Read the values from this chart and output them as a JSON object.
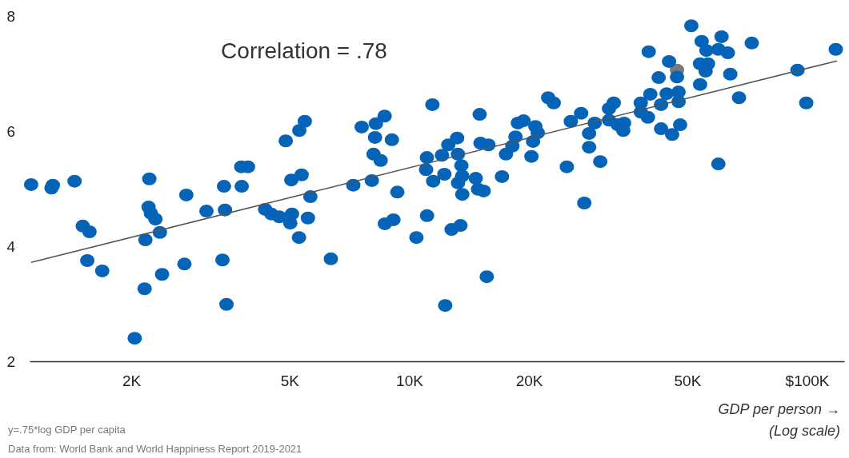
{
  "chart_data": {
    "type": "scatter",
    "xlabel": "GDP per person →\n(Log scale)",
    "log": "x",
    "marker": "circle",
    "grid": false,
    "tick_labels": "xy",
    "xlim": [
      1110,
      124000
    ],
    "ylim": [
      2,
      8
    ],
    "xticks": [
      {
        "value": 2000,
        "label": "2K"
      },
      {
        "value": 5000,
        "label": "5K"
      },
      {
        "value": 10000,
        "label": "10K"
      },
      {
        "value": 20000,
        "label": "20K"
      },
      {
        "value": 50000,
        "label": "50K"
      },
      {
        "value": 100000,
        "label": "$100K"
      }
    ],
    "yticks": [
      2,
      4,
      6,
      8
    ],
    "annotations": [
      "Correlation = .78",
      "y=.75*log GDP per capita",
      "Data from: World Bank and World Happiness Report 2019-2021"
    ],
    "series": [
      {
        "color": "#7a7a7a",
        "x": [
          47100
        ],
        "values": [
          7.06
        ]
      },
      {
        "color": "#0563b8",
        "x": [
          1120,
          1260,
          1270,
          1440,
          1510,
          1570,
          1550,
          1690,
          2220,
          2210,
          2240,
          2300,
          2360,
          2170,
          2160,
          2390,
          2040,
          2750,
          2720,
          3090,
          3420,
          3440,
          3390,
          3470,
          3780,
          3930,
          3790,
          4340,
          4500,
          4710,
          5070,
          5020,
          5280,
          5560,
          5640,
          5050,
          5360,
          4890,
          5290,
          5460,
          6350,
          7230,
          8050,
          7590,
          8240,
          8670,
          8200,
          9040,
          8130,
          8470,
          9330,
          8680,
          9120,
          10420,
          11070,
          11020,
          11430,
          11080,
          11480,
          12250,
          12080,
          12530,
          13190,
          13250,
          13520,
          13580,
          13260,
          13590,
          14690,
          14890,
          15380,
          15030,
          15100,
          15810,
          12770,
          13450,
          15660,
          12310,
          17100,
          17500,
          18160,
          18490,
          18750,
          19370,
          20750,
          21040,
          20470,
          20280,
          22340,
          23070,
          25470,
          27040,
          29240,
          28310,
          28320,
          30200,
          24890,
          27540,
          31770,
          32660,
          31780,
          33420,
          34670,
          34510,
          38190,
          38200,
          39810,
          40360,
          42360,
          42950,
          44360,
          47530,
          47540,
          47110,
          44980,
          39990,
          42960,
          45810,
          47970,
          51170,
          54330,
          55850,
          53830,
          56360,
          55590,
          53840,
          59840,
          60950,
          63240,
          64120,
          67450,
          59850,
          72610,
          94620,
          99540,
          118100
        ],
        "values": [
          5.07,
          5.01,
          5.06,
          5.13,
          4.35,
          4.25,
          3.75,
          3.57,
          5.17,
          4.68,
          4.57,
          4.47,
          4.24,
          4.11,
          3.26,
          3.51,
          2.4,
          4.89,
          3.69,
          4.61,
          5.04,
          4.63,
          3.76,
          2.99,
          5.38,
          5.38,
          5.04,
          4.64,
          4.56,
          4.51,
          4.56,
          4.4,
          4.15,
          4.49,
          4.86,
          5.15,
          5.24,
          5.83,
          6.01,
          6.17,
          3.78,
          5.06,
          5.14,
          6.07,
          6.13,
          6.26,
          5.89,
          5.85,
          5.6,
          5.49,
          4.94,
          4.39,
          4.46,
          4.15,
          5.54,
          5.33,
          6.46,
          4.53,
          5.13,
          5.25,
          5.58,
          5.76,
          5.88,
          5.6,
          5.4,
          5.22,
          5.1,
          4.9,
          5.18,
          4.99,
          4.96,
          6.29,
          5.79,
          5.76,
          4.29,
          4.36,
          3.47,
          2.97,
          5.21,
          5.6,
          5.74,
          5.9,
          6.14,
          6.18,
          6.08,
          5.97,
          5.82,
          5.56,
          6.58,
          6.49,
          6.17,
          6.31,
          6.14,
          5.96,
          5.72,
          5.47,
          5.38,
          4.75,
          6.39,
          6.49,
          6.19,
          6.11,
          6.14,
          6.01,
          6.49,
          6.33,
          6.24,
          6.64,
          6.93,
          6.46,
          6.65,
          6.68,
          6.51,
          6.94,
          7.21,
          7.38,
          6.04,
          5.94,
          6.11,
          7.83,
          7.56,
          7.4,
          7.17,
          7.17,
          7.04,
          6.81,
          7.42,
          7.64,
          7.36,
          6.99,
          6.58,
          5.43,
          7.53,
          7.06,
          6.49,
          7.42
        ]
      },
      {
        "type": "line",
        "color": "#555555",
        "marker": "none",
        "x": [
          1120,
          119000
        ],
        "values": [
          3.72,
          7.22
        ]
      }
    ]
  }
}
